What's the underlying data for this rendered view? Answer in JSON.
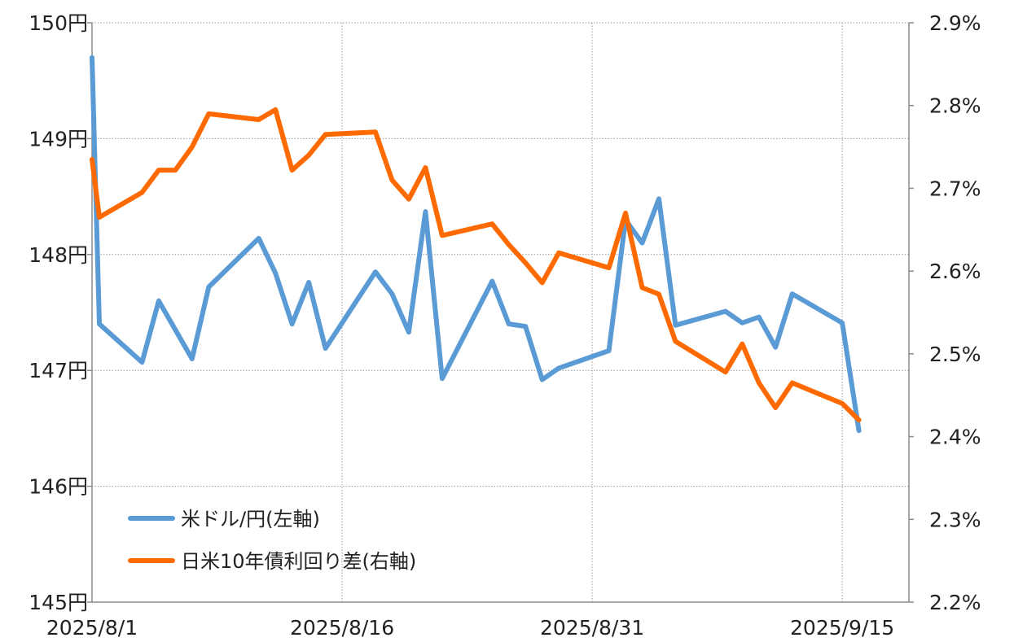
{
  "chart_data": {
    "type": "line",
    "title": "",
    "xlabel": "",
    "ylabel": "",
    "x_axis": {
      "type": "date",
      "range": [
        "2025-08-01",
        "2025-09-19"
      ],
      "tick_values": [
        "2025-08-01",
        "2025-08-16",
        "2025-08-31",
        "2025-09-15"
      ],
      "tick_labels": [
        "2025/8/1",
        "2025/8/16",
        "2025/8/31",
        "2025/9/15"
      ],
      "grid": true
    },
    "y_left": {
      "range": [
        145,
        150
      ],
      "tick_values": [
        145,
        146,
        147,
        148,
        149,
        150
      ],
      "tick_labels": [
        "145円",
        "146円",
        "147円",
        "148円",
        "149円",
        "150円"
      ],
      "grid": true
    },
    "y_right": {
      "range": [
        2.2,
        2.9
      ],
      "tick_values": [
        2.2,
        2.3,
        2.4,
        2.5,
        2.6,
        2.7,
        2.8,
        2.9
      ],
      "tick_labels": [
        "2.2%",
        "2.3%",
        "2.4%",
        "2.5%",
        "2.6%",
        "2.7%",
        "2.8%",
        "2.9%"
      ]
    },
    "legend_position": "bottom-left",
    "series": [
      {
        "name": "米ドル/円(左軸)",
        "axis": "left",
        "color": "#5B9BD5",
        "points": [
          [
            "2025-08-01",
            149.7
          ],
          [
            "2025-08-01",
            147.4
          ],
          [
            "2025-08-04",
            147.07
          ],
          [
            "2025-08-05",
            147.6
          ],
          [
            "2025-08-07",
            147.1
          ],
          [
            "2025-08-08",
            147.72
          ],
          [
            "2025-08-11",
            148.14
          ],
          [
            "2025-08-12",
            147.84
          ],
          [
            "2025-08-13",
            147.4
          ],
          [
            "2025-08-14",
            147.76
          ],
          [
            "2025-08-15",
            147.19
          ],
          [
            "2025-08-18",
            147.85
          ],
          [
            "2025-08-19",
            147.66
          ],
          [
            "2025-08-20",
            147.33
          ],
          [
            "2025-08-21",
            148.37
          ],
          [
            "2025-08-22",
            146.93
          ],
          [
            "2025-08-25",
            147.77
          ],
          [
            "2025-08-26",
            147.4
          ],
          [
            "2025-08-27",
            147.38
          ],
          [
            "2025-08-28",
            146.92
          ],
          [
            "2025-08-29",
            147.02
          ],
          [
            "2025-09-01",
            147.17
          ],
          [
            "2025-09-02",
            148.3
          ],
          [
            "2025-09-03",
            148.1
          ],
          [
            "2025-09-04",
            148.48
          ],
          [
            "2025-09-05",
            147.39
          ],
          [
            "2025-09-08",
            147.51
          ],
          [
            "2025-09-09",
            147.41
          ],
          [
            "2025-09-10",
            147.46
          ],
          [
            "2025-09-11",
            147.2
          ],
          [
            "2025-09-12",
            147.66
          ],
          [
            "2025-09-15",
            147.41
          ],
          [
            "2025-09-16",
            146.48
          ]
        ]
      },
      {
        "name": "日米10年債利回り差(右軸)",
        "axis": "right",
        "color": "#FF6A00",
        "points": [
          [
            "2025-08-01",
            2.735
          ],
          [
            "2025-08-01",
            2.665
          ],
          [
            "2025-08-04",
            2.695
          ],
          [
            "2025-08-05",
            2.722
          ],
          [
            "2025-08-06",
            2.722
          ],
          [
            "2025-08-07",
            2.75
          ],
          [
            "2025-08-08",
            2.79
          ],
          [
            "2025-08-11",
            2.783
          ],
          [
            "2025-08-12",
            2.795
          ],
          [
            "2025-08-13",
            2.722
          ],
          [
            "2025-08-14",
            2.74
          ],
          [
            "2025-08-15",
            2.765
          ],
          [
            "2025-08-18",
            2.768
          ],
          [
            "2025-08-19",
            2.71
          ],
          [
            "2025-08-20",
            2.687
          ],
          [
            "2025-08-21",
            2.725
          ],
          [
            "2025-08-22",
            2.643
          ],
          [
            "2025-08-25",
            2.657
          ],
          [
            "2025-08-26",
            2.632
          ],
          [
            "2025-08-27",
            2.61
          ],
          [
            "2025-08-28",
            2.586
          ],
          [
            "2025-08-29",
            2.622
          ],
          [
            "2025-09-01",
            2.604
          ],
          [
            "2025-09-02",
            2.67
          ],
          [
            "2025-09-03",
            2.58
          ],
          [
            "2025-09-04",
            2.572
          ],
          [
            "2025-09-05",
            2.515
          ],
          [
            "2025-09-08",
            2.478
          ],
          [
            "2025-09-09",
            2.512
          ],
          [
            "2025-09-10",
            2.465
          ],
          [
            "2025-09-11",
            2.435
          ],
          [
            "2025-09-12",
            2.465
          ],
          [
            "2025-09-15",
            2.44
          ],
          [
            "2025-09-16",
            2.42
          ]
        ]
      }
    ]
  }
}
